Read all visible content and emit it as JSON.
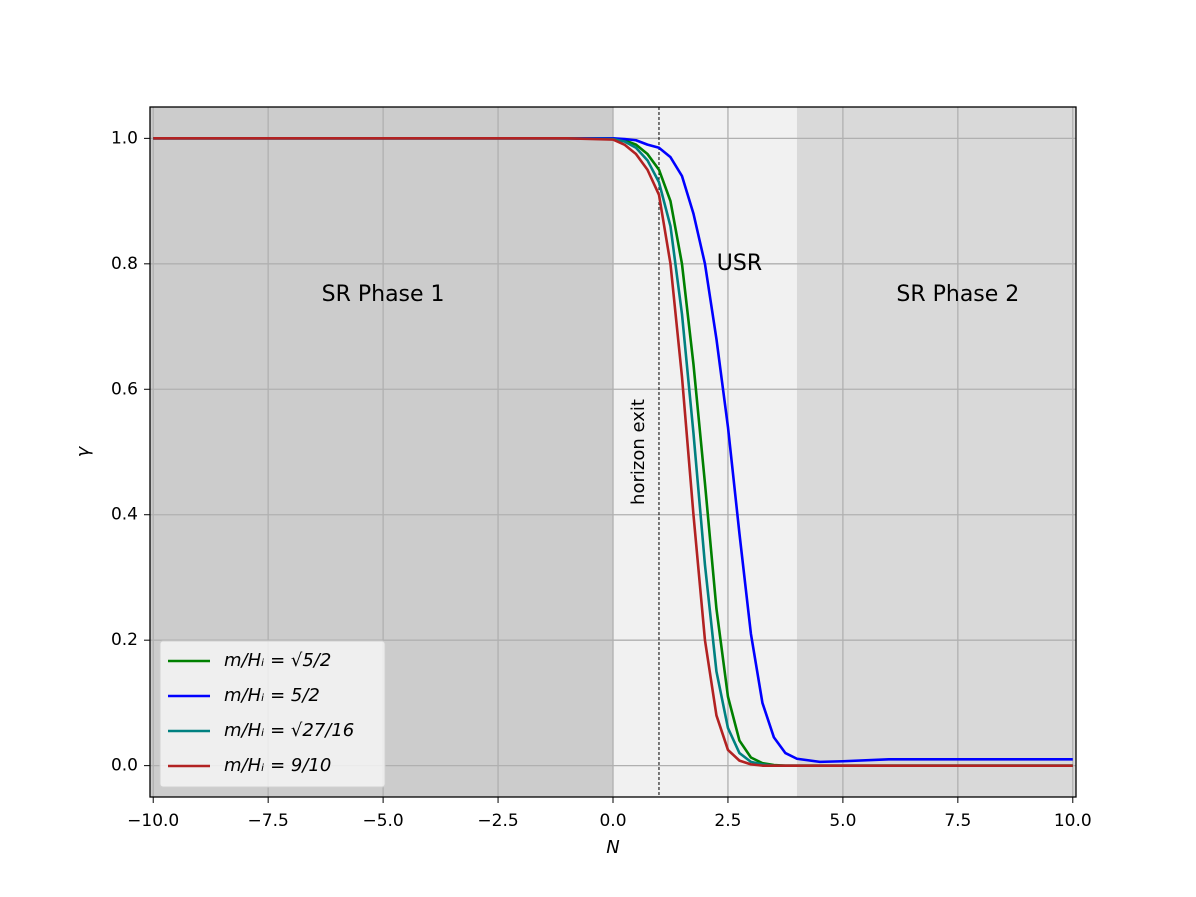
{
  "chart_data": {
    "type": "line",
    "xlabel": "N",
    "ylabel": "γ",
    "xlim": [
      -10.07,
      10.07
    ],
    "ylim": [
      -0.05,
      1.05
    ],
    "xticks": [
      {
        "value": -10,
        "label": "−10.0"
      },
      {
        "value": -7.5,
        "label": "−7.5"
      },
      {
        "value": -5,
        "label": "−5.0"
      },
      {
        "value": -2.5,
        "label": "−2.5"
      },
      {
        "value": 0,
        "label": "0.0"
      },
      2.5,
      {
        "value": 5,
        "label": "5.0"
      },
      7.5,
      {
        "value": 10,
        "label": "10.0"
      }
    ],
    "yticks": [
      {
        "value": 0,
        "label": "0.0"
      },
      0.2,
      0.4,
      0.6,
      0.8,
      {
        "value": 1,
        "label": "1.0"
      }
    ],
    "grid": true,
    "legend": "lower left",
    "regions": [
      {
        "start": -10.07,
        "end": 0,
        "color": "#cccccc"
      },
      {
        "start": 0,
        "end": 4,
        "color": "#f1f1f1"
      },
      {
        "start": 4,
        "end": 10.07,
        "color": "#d9d9d9"
      }
    ],
    "annotations": [
      {
        "text": "SR Phase 1",
        "x": -5,
        "y": 0.75
      },
      {
        "text": "USR",
        "x": 2.75,
        "y": 0.8
      },
      {
        "text": "SR Phase 2",
        "x": 7.5,
        "y": 0.75
      }
    ],
    "vline": {
      "x": 1,
      "label": "horizon exit"
    },
    "x": [
      -10,
      -5,
      -2,
      -1,
      0,
      0.25,
      0.5,
      0.75,
      1,
      1.25,
      1.5,
      1.75,
      2,
      2.25,
      2.5,
      2.75,
      3,
      3.25,
      3.5,
      3.75,
      4,
      4.5,
      5,
      6,
      7,
      8,
      10
    ],
    "series": [
      {
        "name": "m/Hᵢ = √5/2",
        "color": "#008000",
        "values": [
          1,
          1,
          1,
          1,
          1,
          0.997,
          0.99,
          0.975,
          0.95,
          0.9,
          0.8,
          0.64,
          0.45,
          0.25,
          0.11,
          0.04,
          0.013,
          0.004,
          0.001,
          0,
          0,
          0,
          0,
          0,
          0,
          0,
          0
        ]
      },
      {
        "name": "m/Hᵢ = 5/2",
        "color": "#0000ff",
        "values": [
          1,
          1,
          1,
          1,
          1,
          0.999,
          0.997,
          0.99,
          0.985,
          0.97,
          0.94,
          0.88,
          0.8,
          0.68,
          0.54,
          0.37,
          0.21,
          0.1,
          0.045,
          0.02,
          0.011,
          0.006,
          0.007,
          0.01,
          0.01,
          0.01,
          0.01
        ]
      },
      {
        "name": "m/Hᵢ = √27/16",
        "color": "#008080",
        "values": [
          1,
          1,
          1,
          1,
          0.999,
          0.995,
          0.985,
          0.965,
          0.93,
          0.86,
          0.72,
          0.53,
          0.32,
          0.15,
          0.06,
          0.02,
          0.006,
          0.002,
          0,
          0,
          0,
          0,
          0,
          0,
          0,
          0,
          0
        ]
      },
      {
        "name": "m/Hᵢ = 9/10",
        "color": "#b22222",
        "values": [
          1,
          1,
          1,
          1,
          0.998,
          0.99,
          0.975,
          0.95,
          0.91,
          0.8,
          0.62,
          0.4,
          0.2,
          0.08,
          0.025,
          0.008,
          0.002,
          0,
          0,
          0,
          0,
          0,
          0,
          0,
          0,
          0,
          0
        ]
      }
    ]
  }
}
